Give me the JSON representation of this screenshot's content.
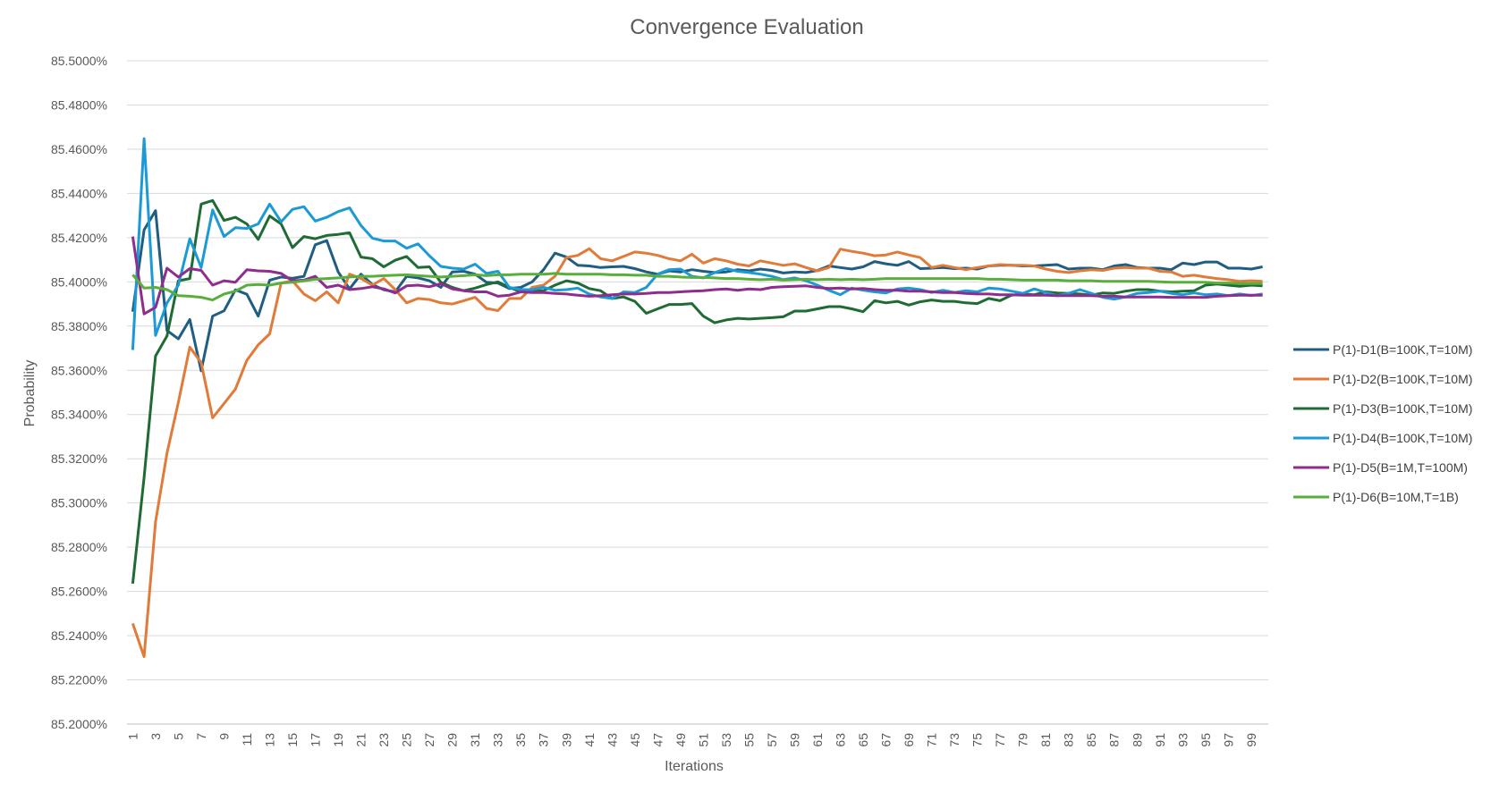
{
  "chart_data": {
    "type": "line",
    "title": "Convergence Evaluation",
    "xlabel": "Iterations",
    "ylabel": "Probability",
    "ylim": [
      85.2,
      85.5
    ],
    "yticks": [
      "85.2000%",
      "85.2200%",
      "85.2400%",
      "85.2600%",
      "85.2800%",
      "85.3000%",
      "85.3200%",
      "85.3400%",
      "85.3600%",
      "85.3800%",
      "85.4000%",
      "85.4200%",
      "85.4400%",
      "85.4600%",
      "85.4800%",
      "85.5000%"
    ],
    "xticks": [
      "1",
      "3",
      "5",
      "7",
      "9",
      "11",
      "13",
      "15",
      "17",
      "19",
      "21",
      "23",
      "25",
      "27",
      "29",
      "31",
      "33",
      "35",
      "37",
      "39",
      "41",
      "43",
      "45",
      "47",
      "49",
      "51",
      "53",
      "55",
      "57",
      "59",
      "61",
      "63",
      "65",
      "67",
      "69",
      "71",
      "73",
      "75",
      "77",
      "79",
      "81",
      "83",
      "85",
      "87",
      "89",
      "91",
      "93",
      "95",
      "97",
      "99"
    ],
    "grid": true,
    "legend_position": "right",
    "series": [
      {
        "name": "P(1)-D1(B=100K,T=10M)",
        "color": "#1f5d82",
        "values": [
          85.3865,
          85.4235,
          85.4322,
          85.378,
          85.3742,
          85.383,
          85.3598,
          85.3845,
          85.3869,
          85.3964,
          85.3944,
          85.3845,
          85.4008,
          85.4022,
          85.4016,
          85.4025,
          85.4168,
          85.4187,
          85.4045,
          85.3968,
          85.4035,
          85.3988,
          85.3964,
          85.3955,
          85.4025,
          85.4018,
          85.4005,
          85.3975,
          85.4045,
          85.4048,
          85.4035,
          85.3998,
          85.3995,
          85.397,
          85.3975,
          85.4,
          85.4055,
          85.413,
          85.4112,
          85.4075,
          85.4072,
          85.4065,
          85.4068,
          85.407,
          85.406,
          85.4045,
          85.4035,
          85.405,
          85.4045,
          85.4055,
          85.4048,
          85.4042,
          85.4045,
          85.4055,
          85.405,
          85.4058,
          85.4052,
          85.404,
          85.4045,
          85.4042,
          85.4052,
          85.4072,
          85.4065,
          85.4058,
          85.4068,
          85.4092,
          85.4082,
          85.4075,
          85.4092,
          85.406,
          85.4062,
          85.4065,
          85.406,
          85.4062,
          85.4058,
          85.4072,
          85.4075,
          85.4075,
          85.4072,
          85.4072,
          85.4075,
          85.4078,
          85.4058,
          85.4062,
          85.4062,
          85.4055,
          85.4072,
          85.4078,
          85.4065,
          85.4062,
          85.4062,
          85.4055,
          85.4085,
          85.4078,
          85.409,
          85.409,
          85.4062,
          85.4062,
          85.4058,
          85.4068
        ]
      },
      {
        "name": "P(1)-D2(B=100K,T=10M)",
        "color": "#e07b39",
        "values": [
          85.2455,
          85.2305,
          85.2915,
          85.3225,
          85.3455,
          85.3705,
          85.3635,
          85.3385,
          85.345,
          85.3515,
          85.3645,
          85.3715,
          85.3765,
          85.3995,
          85.4005,
          85.3945,
          85.3915,
          85.3955,
          85.3905,
          85.4035,
          85.4015,
          85.3985,
          85.4015,
          85.3965,
          85.3905,
          85.3925,
          85.392,
          85.3905,
          85.39,
          85.3915,
          85.393,
          85.388,
          85.387,
          85.3925,
          85.3925,
          85.3975,
          85.3985,
          85.4025,
          85.411,
          85.412,
          85.415,
          85.4105,
          85.4095,
          85.4115,
          85.4135,
          85.413,
          85.412,
          85.4105,
          85.4095,
          85.4125,
          85.4085,
          85.4105,
          85.4095,
          85.408,
          85.4072,
          85.4095,
          85.4085,
          85.4075,
          85.4082,
          85.4065,
          85.405,
          85.4065,
          85.4148,
          85.4138,
          85.413,
          85.4118,
          85.4122,
          85.4135,
          85.4122,
          85.411,
          85.4065,
          85.4075,
          85.4065,
          85.4055,
          85.4065,
          85.4072,
          85.4078,
          85.4075,
          85.4075,
          85.4072,
          85.4058,
          85.4048,
          85.4042,
          85.405,
          85.4055,
          85.4052,
          85.4062,
          85.4065,
          85.4062,
          85.4062,
          85.4048,
          85.4045,
          85.4025,
          85.403,
          85.4022,
          85.4015,
          85.401,
          85.4002,
          85.4005,
          85.4002
        ]
      },
      {
        "name": "P(1)-D3(B=100K,T=10M)",
        "color": "#1e6b34",
        "values": [
          85.2635,
          85.3115,
          85.3665,
          85.3755,
          85.4005,
          85.4015,
          85.4352,
          85.4368,
          85.4278,
          85.4292,
          85.4262,
          85.4192,
          85.4298,
          85.4262,
          85.4155,
          85.4205,
          85.4195,
          85.421,
          85.4215,
          85.4222,
          85.4112,
          85.4105,
          85.4068,
          85.4098,
          85.4115,
          85.4065,
          85.4068,
          85.3998,
          85.3975,
          85.396,
          85.3972,
          85.3988,
          85.4,
          85.3975,
          85.3955,
          85.396,
          85.396,
          85.3985,
          85.4005,
          85.3995,
          85.397,
          85.396,
          85.3925,
          85.3932,
          85.3912,
          85.3858,
          85.3878,
          85.3898,
          85.3898,
          85.3902,
          85.3845,
          85.3815,
          85.3828,
          85.3835,
          85.3832,
          85.3835,
          85.3838,
          85.3842,
          85.3868,
          85.3868,
          85.3878,
          85.3888,
          85.3888,
          85.3878,
          85.3865,
          85.3915,
          85.3905,
          85.3912,
          85.3895,
          85.391,
          85.3918,
          85.3912,
          85.3912,
          85.3905,
          85.3902,
          85.3925,
          85.3915,
          85.394,
          85.3945,
          85.3942,
          85.3955,
          85.395,
          85.3948,
          85.3945,
          85.394,
          85.395,
          85.3948,
          85.3958,
          85.3965,
          85.3965,
          85.3958,
          85.3955,
          85.3958,
          85.396,
          85.3985,
          85.399,
          85.3985,
          85.398,
          85.3985,
          85.3982
        ]
      },
      {
        "name": "P(1)-D4(B=100K,T=10M)",
        "color": "#1c9ad6",
        "values": [
          85.3692,
          85.4648,
          85.3758,
          85.3905,
          85.3985,
          85.4195,
          85.4065,
          85.4325,
          85.4205,
          85.4245,
          85.4242,
          85.4262,
          85.4352,
          85.4272,
          85.4328,
          85.434,
          85.4275,
          85.4292,
          85.4318,
          85.4335,
          85.4255,
          85.4198,
          85.4185,
          85.4185,
          85.4152,
          85.4172,
          85.4118,
          85.407,
          85.4062,
          85.4058,
          85.408,
          85.4038,
          85.4048,
          85.3975,
          85.3965,
          85.3965,
          85.3975,
          85.3962,
          85.3965,
          85.3972,
          85.3945,
          85.3932,
          85.3925,
          85.3955,
          85.3952,
          85.3975,
          85.4035,
          85.4055,
          85.4058,
          85.4025,
          85.4018,
          85.4042,
          85.406,
          85.4048,
          85.4042,
          85.4035,
          85.4025,
          85.401,
          85.4018,
          85.4005,
          85.3985,
          85.3962,
          85.3942,
          85.3972,
          85.3962,
          85.3955,
          85.395,
          85.3968,
          85.3972,
          85.3965,
          85.3952,
          85.3962,
          85.3952,
          85.396,
          85.3955,
          85.3972,
          85.3968,
          85.3958,
          85.3948,
          85.3968,
          85.3952,
          85.3938,
          85.3948,
          85.3965,
          85.3948,
          85.393,
          85.3922,
          85.3932,
          85.3948,
          85.3952,
          85.3958,
          85.3948,
          85.3942,
          85.395,
          85.3942,
          85.3945,
          85.3938,
          85.3945,
          85.3938,
          85.3945
        ]
      },
      {
        "name": "P(1)-D5(B=1M,T=100M)",
        "color": "#8e2d8e",
        "values": [
          85.4205,
          85.3855,
          85.3885,
          85.4062,
          85.4022,
          85.406,
          85.4052,
          85.3985,
          85.4005,
          85.3998,
          85.4055,
          85.405,
          85.4048,
          85.4038,
          85.4005,
          85.4008,
          85.4025,
          85.3975,
          85.3985,
          85.3965,
          85.397,
          85.3978,
          85.3968,
          85.395,
          85.3982,
          85.3985,
          85.3978,
          85.3992,
          85.3968,
          85.396,
          85.3955,
          85.3955,
          85.3935,
          85.394,
          85.3955,
          85.3952,
          85.3952,
          85.3948,
          85.3945,
          85.394,
          85.3935,
          85.3938,
          85.3942,
          85.3945,
          85.3945,
          85.3948,
          85.3952,
          85.3952,
          85.3955,
          85.3958,
          85.396,
          85.3965,
          85.3968,
          85.3962,
          85.3968,
          85.3965,
          85.3975,
          85.3978,
          85.398,
          85.3982,
          85.3975,
          85.397,
          85.3972,
          85.3968,
          85.397,
          85.3965,
          85.3962,
          85.3962,
          85.3958,
          85.3958,
          85.3955,
          85.3952,
          85.3952,
          85.3948,
          85.3945,
          85.3945,
          85.3942,
          85.3942,
          85.394,
          85.394,
          85.394,
          85.3938,
          85.3938,
          85.3938,
          85.3938,
          85.3935,
          85.3935,
          85.3932,
          85.3932,
          85.3932,
          85.3932,
          85.393,
          85.393,
          85.393,
          85.393,
          85.3935,
          85.3938,
          85.394,
          85.394,
          85.394
        ]
      },
      {
        "name": "P(1)-D6(B=10M,T=1B)",
        "color": "#5aae3c",
        "values": [
          85.4032,
          85.3972,
          85.3975,
          85.3965,
          85.3938,
          85.3935,
          85.393,
          85.3918,
          85.3945,
          85.3958,
          85.3985,
          85.3988,
          85.3985,
          85.3995,
          85.3998,
          85.4005,
          85.4012,
          85.4015,
          85.4018,
          85.4022,
          85.4025,
          85.4025,
          85.4028,
          85.403,
          85.4032,
          85.4028,
          85.4025,
          85.4022,
          85.4025,
          85.4028,
          85.4032,
          85.4028,
          85.4032,
          85.4032,
          85.4035,
          85.4035,
          85.4035,
          85.4038,
          85.4035,
          85.4035,
          85.4035,
          85.4035,
          85.4032,
          85.4032,
          85.403,
          85.403,
          85.4025,
          85.4025,
          85.4022,
          85.402,
          85.402,
          85.4018,
          85.4015,
          85.4015,
          85.4012,
          85.401,
          85.4012,
          85.4008,
          85.401,
          85.4012,
          85.401,
          85.4012,
          85.401,
          85.4012,
          85.401,
          85.4012,
          85.4015,
          85.4015,
          85.4015,
          85.4015,
          85.4015,
          85.4015,
          85.4015,
          85.4015,
          85.4015,
          85.4012,
          85.4012,
          85.401,
          85.4008,
          85.4008,
          85.4008,
          85.4008,
          85.4005,
          85.4005,
          85.4005,
          85.4002,
          85.4002,
          85.4002,
          85.4002,
          85.4002,
          85.4,
          85.3998,
          85.3998,
          85.3998,
          85.3998,
          85.3995,
          85.3995,
          85.3992,
          85.3992,
          85.3992
        ]
      }
    ]
  }
}
